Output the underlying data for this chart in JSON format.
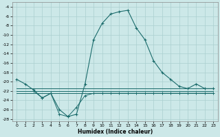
{
  "xlabel": "Humidex (Indice chaleur)",
  "xlim": [
    -0.5,
    23.5
  ],
  "ylim": [
    -28.5,
    -3.0
  ],
  "yticks": [
    -28,
    -26,
    -24,
    -22,
    -20,
    -18,
    -16,
    -14,
    -12,
    -10,
    -8,
    -6,
    -4
  ],
  "xticks": [
    0,
    1,
    2,
    3,
    4,
    5,
    6,
    7,
    8,
    9,
    10,
    11,
    12,
    13,
    14,
    15,
    16,
    17,
    18,
    19,
    20,
    21,
    22,
    23
  ],
  "bg_color": "#cce8e8",
  "grid_color": "#aacfcf",
  "line_color": "#1a6b6b",
  "main_x": [
    0,
    1,
    2,
    3,
    4,
    5,
    6,
    7,
    8,
    9,
    10,
    11,
    12,
    13,
    14,
    15,
    16,
    17,
    18,
    19,
    20,
    21,
    22,
    23
  ],
  "main_y": [
    -19.5,
    -20.5,
    -21.8,
    -23.5,
    -22.5,
    -26.0,
    -27.5,
    -27.0,
    -20.5,
    -11.0,
    -7.5,
    -5.5,
    -5.0,
    -4.7,
    -8.5,
    -11.0,
    -15.5,
    -18.0,
    -19.5,
    -21.0,
    -21.5,
    -20.5,
    -21.5,
    -21.5
  ],
  "flat1_x": [
    0,
    1,
    2,
    3,
    4,
    5,
    6,
    7,
    8,
    9,
    10,
    11,
    12,
    13,
    14,
    15,
    16,
    17,
    18,
    19,
    20,
    21,
    22,
    23
  ],
  "flat1_y": [
    -21.5,
    -21.5,
    -21.5,
    -21.5,
    -21.5,
    -21.5,
    -21.5,
    -21.5,
    -21.5,
    -21.5,
    -21.5,
    -21.5,
    -21.5,
    -21.5,
    -21.5,
    -21.5,
    -21.5,
    -21.5,
    -21.5,
    -21.5,
    -21.5,
    -21.5,
    -21.5,
    -21.5
  ],
  "flat2_x": [
    0,
    1,
    2,
    3,
    4,
    5,
    6,
    7,
    8,
    9,
    10,
    11,
    12,
    13,
    14,
    15,
    16,
    17,
    18,
    19,
    20,
    21,
    22,
    23
  ],
  "flat2_y": [
    -22.0,
    -22.0,
    -22.0,
    -22.0,
    -22.0,
    -22.0,
    -22.0,
    -22.0,
    -22.0,
    -22.0,
    -22.0,
    -22.0,
    -22.0,
    -22.0,
    -22.0,
    -22.0,
    -22.0,
    -22.0,
    -22.0,
    -22.0,
    -22.0,
    -22.0,
    -22.0,
    -22.0
  ],
  "flat3_x": [
    0,
    1,
    2,
    3,
    4,
    5,
    6,
    7,
    8,
    9,
    10,
    11,
    12,
    13,
    14,
    15,
    16,
    17,
    18,
    19,
    20,
    21,
    22,
    23
  ],
  "flat3_y": [
    -22.5,
    -22.5,
    -22.5,
    -22.5,
    -22.5,
    -22.5,
    -22.5,
    -22.5,
    -22.5,
    -22.5,
    -22.5,
    -22.5,
    -22.5,
    -22.5,
    -22.5,
    -22.5,
    -22.5,
    -22.5,
    -22.5,
    -22.5,
    -22.5,
    -22.5,
    -22.5,
    -22.5
  ],
  "dip_x": [
    2,
    3,
    4,
    5,
    6,
    7,
    8,
    9,
    10,
    11,
    12,
    13,
    14,
    15,
    16,
    17,
    18,
    19,
    20,
    21,
    22,
    23
  ],
  "dip_y": [
    -22.0,
    -23.5,
    -22.5,
    -27.0,
    -27.5,
    -25.5,
    -23.0,
    -22.5,
    -22.5,
    -22.5,
    -22.5,
    -22.5,
    -22.5,
    -22.5,
    -22.5,
    -22.5,
    -22.5,
    -22.5,
    -22.5,
    -22.5,
    -22.5,
    -22.5
  ]
}
